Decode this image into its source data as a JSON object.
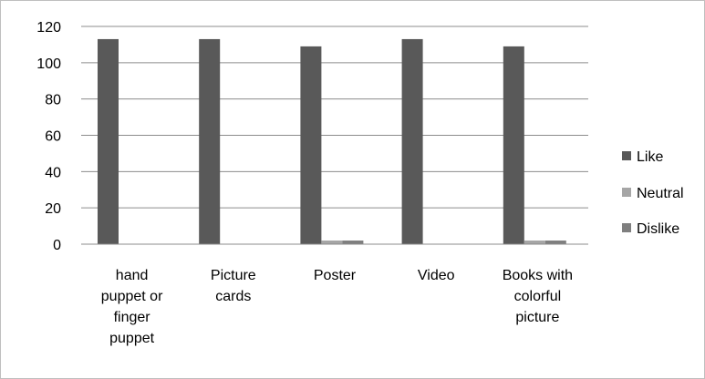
{
  "chart_data": {
    "type": "bar",
    "categories": [
      [
        "hand",
        "puppet or",
        "finger",
        "puppet"
      ],
      [
        "Picture",
        "cards"
      ],
      [
        "Poster"
      ],
      [
        "Video"
      ],
      [
        "Books with",
        "colorful",
        "picture"
      ]
    ],
    "series": [
      {
        "name": "Like",
        "color": "#595959",
        "values": [
          113,
          113,
          109,
          113,
          109
        ]
      },
      {
        "name": "Neutral",
        "color": "#a6a6a6",
        "values": [
          0,
          0,
          2,
          0,
          2
        ]
      },
      {
        "name": "Dislike",
        "color": "#7f7f7f",
        "values": [
          0,
          0,
          2,
          0,
          2
        ]
      }
    ],
    "yticks": [
      0,
      20,
      40,
      60,
      80,
      100,
      120
    ],
    "ylim": [
      0,
      120
    ],
    "grid": true,
    "legend_position": "right"
  }
}
